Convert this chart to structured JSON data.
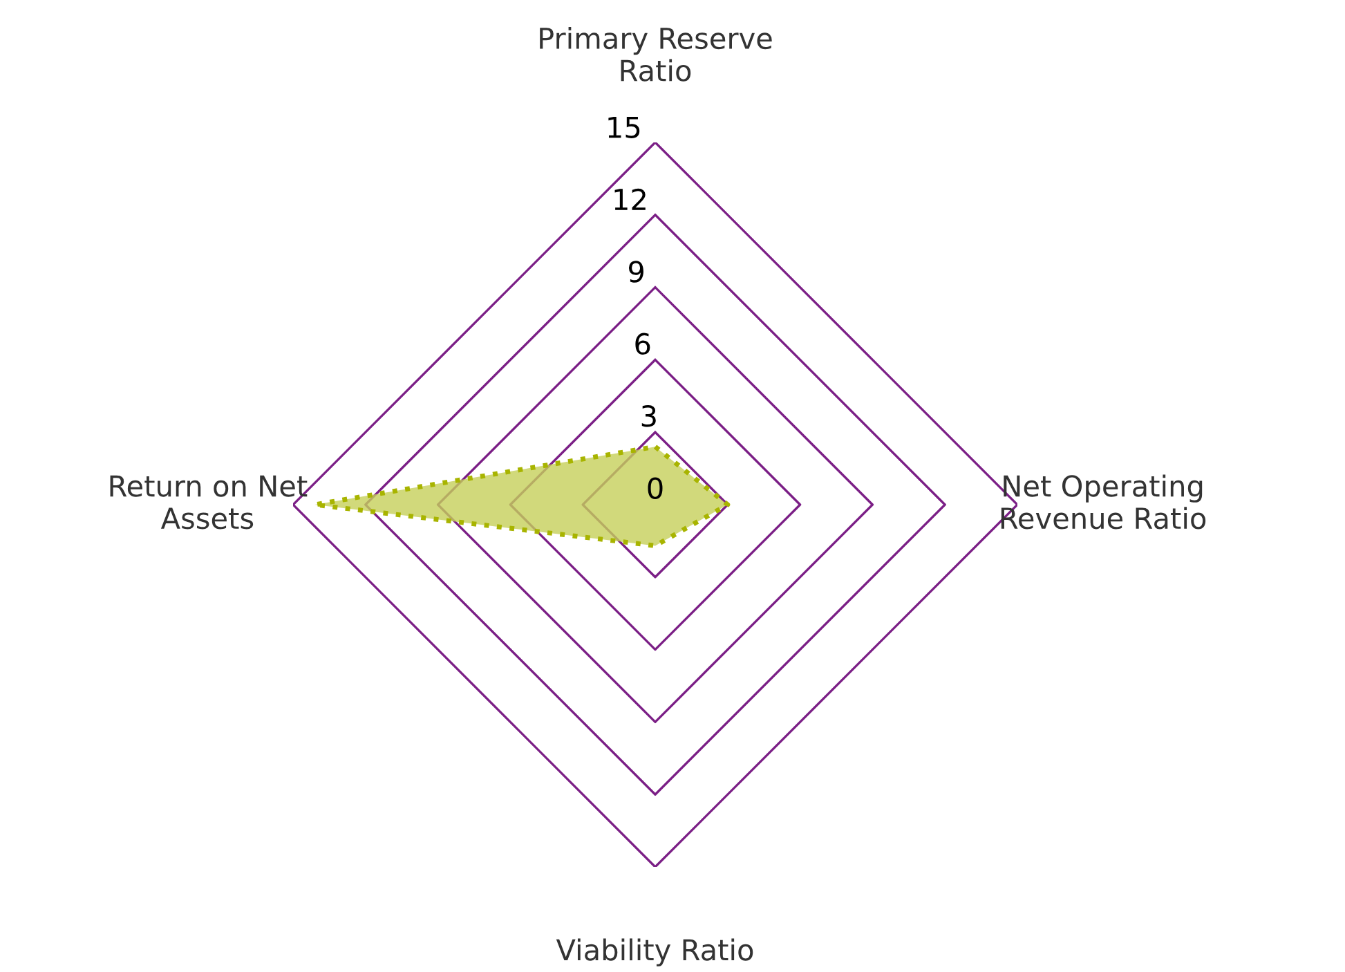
{
  "chart_data": {
    "type": "radar",
    "categories": [
      "Primary Reserve Ratio",
      "Net Operating Revenue Ratio",
      "Viability Ratio",
      "Return on Net Assets"
    ],
    "series": [
      {
        "color": "#c5cf5a",
        "values": [
          2.4,
          3.0,
          1.7,
          14.1
        ]
      }
    ],
    "line_style": "dotted",
    "marker": "none",
    "ylim": [
      0,
      15
    ],
    "yticks": [
      0,
      3,
      6,
      9,
      12,
      15
    ],
    "grid": true
  }
}
